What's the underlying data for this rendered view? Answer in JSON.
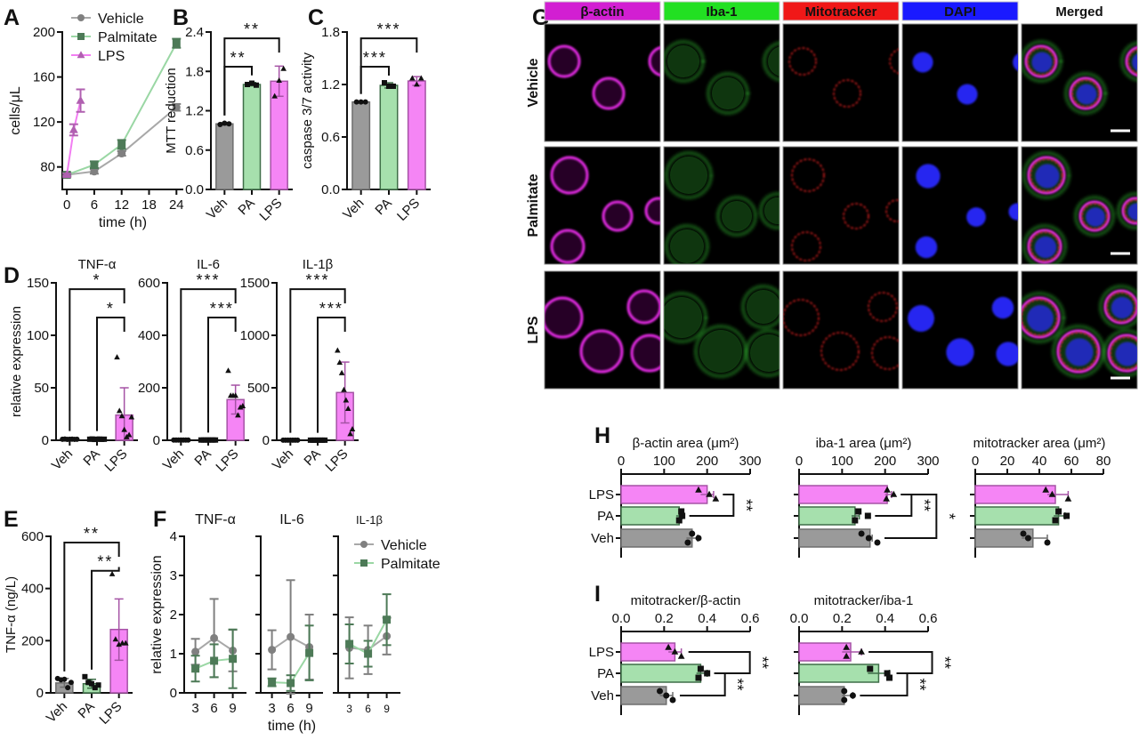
{
  "panel_letters": [
    "A",
    "B",
    "C",
    "D",
    "E",
    "F",
    "G",
    "H",
    "I"
  ],
  "groups": {
    "Veh": {
      "fill": "#9a9a9a",
      "stroke": "#6e6e6e",
      "marker": "circle"
    },
    "PA": {
      "fill": "#a6e0ad",
      "stroke": "#3f6e48",
      "marker": "square"
    },
    "LPS": {
      "fill": "#f585f5",
      "stroke": "#a553a5",
      "marker": "triangle"
    }
  },
  "series_colors": {
    "Vehicle": {
      "line": "#a8a8a8",
      "marker": "#808080",
      "marker_shape": "circle"
    },
    "Palmitate": {
      "line": "#9ad7a4",
      "marker": "#4d7a57",
      "marker_shape": "square"
    },
    "LPS": {
      "line": "#f27ef2",
      "marker": "#b060b0",
      "marker_shape": "triangle"
    }
  },
  "microscopy": {
    "columns": [
      {
        "label": "β-actin",
        "bg": "#d21fd2",
        "text": "#5a0a5a"
      },
      {
        "label": "Iba-1",
        "bg": "#22e022",
        "text": "#0b4a0b"
      },
      {
        "label": "Mitotracker",
        "bg": "#f01818",
        "text": "#5a0606"
      },
      {
        "label": "DAPI",
        "bg": "#1a1aff",
        "text": "#0a0a6a"
      },
      {
        "label": "Merged",
        "bg": "#ffffff",
        "text": "#111111"
      }
    ],
    "rows": [
      "Vehicle",
      "Palmitate",
      "LPS"
    ],
    "channel_colors": {
      "beta_actin": "#e52be5",
      "iba1": "#3ad83a",
      "mitotracker": "#e02222",
      "dapi": "#2626f0"
    },
    "scale_bar": true
  },
  "chart_data": [
    {
      "panel": "A",
      "type": "line",
      "xlabel": "time (h)",
      "ylabel": "cells/μL",
      "xlim": [
        -1,
        25.5
      ],
      "ylim": [
        60,
        200
      ],
      "xticks": [
        "0",
        "6",
        "12",
        "18",
        "24"
      ],
      "yticks": [
        "80",
        "120",
        "160",
        "200"
      ],
      "legend": "top-left",
      "grid": false,
      "series": [
        {
          "name": "Vehicle",
          "x": [
            0,
            6,
            12,
            24
          ],
          "y": [
            73,
            76,
            92,
            133
          ],
          "err": [
            2,
            2,
            2,
            3
          ]
        },
        {
          "name": "Palmitate",
          "x": [
            0,
            6,
            12,
            24
          ],
          "y": [
            73,
            82,
            100,
            190
          ],
          "err": [
            1,
            3,
            4,
            4
          ]
        },
        {
          "name": "LPS",
          "x": [
            0,
            1.5,
            3
          ],
          "y": [
            73,
            113,
            139
          ],
          "err": [
            1,
            5,
            10
          ]
        }
      ]
    },
    {
      "panel": "B",
      "type": "bar",
      "ylabel": "MTT reduction",
      "categories": [
        "Veh",
        "PA",
        "LPS"
      ],
      "values": [
        1.0,
        1.6,
        1.65
      ],
      "error": [
        [
          0.98,
          1.02
        ],
        [
          1.58,
          1.63
        ],
        [
          1.42,
          1.88
        ]
      ],
      "points": [
        [
          0.99,
          1.01,
          1.0
        ],
        [
          1.6,
          1.62,
          1.59
        ],
        [
          1.42,
          1.66,
          1.84
        ]
      ],
      "ylim": [
        0,
        2.4
      ],
      "yticks": [
        "0.0",
        "0.6",
        "1.2",
        "1.8",
        "2.4"
      ],
      "significance": [
        {
          "from": 0,
          "to": 1,
          "label": "**"
        },
        {
          "from": 0,
          "to": 2,
          "label": "**"
        }
      ]
    },
    {
      "panel": "C",
      "type": "bar",
      "ylabel": "caspase 3/7 activity",
      "categories": [
        "Veh",
        "PA",
        "LPS"
      ],
      "values": [
        1.0,
        1.19,
        1.24
      ],
      "error": [
        [
          0.99,
          1.01
        ],
        [
          1.16,
          1.22
        ],
        [
          1.19,
          1.29
        ]
      ],
      "points": [
        [
          1.0,
          1.0,
          1.0
        ],
        [
          1.22,
          1.18,
          1.18
        ],
        [
          1.27,
          1.2,
          1.27
        ]
      ],
      "ylim": [
        0,
        1.8
      ],
      "yticks": [
        "0.0",
        "0.6",
        "1.2",
        "1.8"
      ],
      "significance": [
        {
          "from": 0,
          "to": 1,
          "label": "***"
        },
        {
          "from": 0,
          "to": 2,
          "label": "***"
        }
      ]
    },
    {
      "panel": "D",
      "type": "bar",
      "title": "TNF-α",
      "ylabel": "relative expression",
      "categories": [
        "Veh",
        "PA",
        "LPS"
      ],
      "values": [
        1,
        1,
        24
      ],
      "error": [
        [
          0,
          2
        ],
        [
          0,
          2
        ],
        [
          0,
          50
        ]
      ],
      "points": [
        [
          1,
          1.2,
          0.8,
          1,
          1.1,
          0.9,
          1
        ],
        [
          1,
          1.2,
          0.8,
          1,
          1.1,
          0.9,
          1
        ],
        [
          79,
          28,
          23,
          10,
          3,
          5,
          22
        ]
      ],
      "ylim": [
        0,
        150
      ],
      "yticks": [
        "0",
        "50",
        "100",
        "150"
      ],
      "significance": [
        {
          "from": 1,
          "to": 2,
          "label": "*"
        },
        {
          "from": 0,
          "to": 2,
          "label": "*"
        }
      ]
    },
    {
      "panel": "D",
      "type": "bar",
      "title": "IL-6",
      "ylabel": "",
      "categories": [
        "Veh",
        "PA",
        "LPS"
      ],
      "values": [
        1,
        1,
        155
      ],
      "error": [
        [
          0,
          2
        ],
        [
          0,
          2
        ],
        [
          100,
          210
        ]
      ],
      "points": [
        [
          1,
          1,
          1,
          1,
          1,
          1,
          1
        ],
        [
          1,
          1,
          1,
          1,
          1,
          1,
          1
        ],
        [
          265,
          170,
          170,
          170,
          95,
          125,
          130
        ]
      ],
      "ylim": [
        0,
        600
      ],
      "yticks": [
        "0",
        "200",
        "400",
        "600"
      ],
      "significance": [
        {
          "from": 1,
          "to": 2,
          "label": "***"
        },
        {
          "from": 0,
          "to": 2,
          "label": "***"
        }
      ]
    },
    {
      "panel": "D",
      "type": "bar",
      "title": "IL-1β",
      "ylabel": "",
      "categories": [
        "Veh",
        "PA",
        "LPS"
      ],
      "values": [
        1,
        1,
        455
      ],
      "error": [
        [
          0,
          3
        ],
        [
          0,
          3
        ],
        [
          165,
          745
        ]
      ],
      "points": [
        [
          1,
          1,
          1,
          1,
          1,
          1,
          1
        ],
        [
          1,
          1,
          1,
          1,
          1,
          1,
          1
        ],
        [
          855,
          740,
          640,
          480,
          380,
          300,
          60,
          105
        ]
      ],
      "ylim": [
        0,
        1500
      ],
      "yticks": [
        "0",
        "500",
        "1000",
        "1500"
      ],
      "significance": [
        {
          "from": 1,
          "to": 2,
          "label": "***"
        },
        {
          "from": 0,
          "to": 2,
          "label": "***"
        }
      ]
    },
    {
      "panel": "E",
      "type": "bar",
      "ylabel": "TNF-α (ng/L)",
      "categories": [
        "Veh",
        "PA",
        "LPS"
      ],
      "values": [
        38,
        35,
        243
      ],
      "error": [
        [
          22,
          55
        ],
        [
          18,
          52
        ],
        [
          125,
          360
        ]
      ],
      "points": [
        [
          55,
          50,
          52,
          20,
          40
        ],
        [
          62,
          40,
          35,
          20,
          30
        ],
        [
          455,
          205,
          185,
          190,
          190
        ]
      ],
      "ylim": [
        0,
        600
      ],
      "yticks": [
        "0",
        "200",
        "400",
        "600"
      ],
      "significance": [
        {
          "from": 1,
          "to": 2,
          "label": "**"
        },
        {
          "from": 0,
          "to": 2,
          "label": "**"
        }
      ]
    },
    {
      "panel": "F",
      "type": "line",
      "title": "TNF-α",
      "ylabel": "relative expression",
      "xlabel": "",
      "xlim": [
        1.2,
        11.2
      ],
      "ylim": [
        0,
        4
      ],
      "xticks": [
        "3",
        "6",
        "9"
      ],
      "yticks": [
        "0",
        "1",
        "2",
        "3",
        "4"
      ],
      "series": [
        {
          "name": "Vehicle",
          "x": [
            3,
            6,
            9
          ],
          "y": [
            1.05,
            1.4,
            1.08
          ],
          "err": [
            0.33,
            1.0,
            0.53
          ]
        },
        {
          "name": "Palmitate",
          "x": [
            3,
            6,
            9
          ],
          "y": [
            0.62,
            0.82,
            0.87
          ],
          "err": [
            0.33,
            0.42,
            0.75
          ]
        }
      ]
    },
    {
      "panel": "F",
      "type": "line",
      "title": "IL-6",
      "ylabel": "",
      "xlabel": "time (h)",
      "xlim": [
        1.2,
        11.2
      ],
      "ylim": [
        0,
        4
      ],
      "xticks": [
        "3",
        "6",
        "9"
      ],
      "yticks": [],
      "series": [
        {
          "name": "Vehicle",
          "x": [
            3,
            6,
            9
          ],
          "y": [
            1.1,
            1.43,
            1.17
          ],
          "err": [
            0.5,
            1.45,
            0.83
          ]
        },
        {
          "name": "Palmitate",
          "x": [
            3,
            6,
            9
          ],
          "y": [
            0.27,
            0.25,
            1.02
          ],
          "err": [
            0.1,
            0.2,
            0.7
          ]
        }
      ]
    },
    {
      "panel": "F",
      "type": "line",
      "title": "IL-1β",
      "ylabel": "",
      "xlabel": "",
      "xlim": [
        1.2,
        11.2
      ],
      "ylim": [
        0,
        4
      ],
      "xticks": [
        "3",
        "6",
        "9"
      ],
      "yticks": [],
      "legend": "top-right",
      "series": [
        {
          "name": "Vehicle",
          "x": [
            3,
            6,
            9
          ],
          "y": [
            1.15,
            1.1,
            1.45
          ],
          "err": [
            0.78,
            0.62,
            0.47
          ]
        },
        {
          "name": "Palmitate",
          "x": [
            3,
            6,
            9
          ],
          "y": [
            1.25,
            1.0,
            1.87
          ],
          "err": [
            0.5,
            0.33,
            0.65
          ]
        }
      ]
    },
    {
      "panel": "H",
      "type": "bar",
      "orientation": "horizontal",
      "title": "β-actin area (μm²)",
      "categories": [
        "LPS",
        "PA",
        "Veh"
      ],
      "values": [
        200,
        135,
        165
      ],
      "error": [
        [
          185,
          215
        ],
        [
          128,
          142
        ],
        [
          152,
          178
        ]
      ],
      "points": [
        [
          180,
          205,
          220
        ],
        [
          140,
          142,
          135
        ],
        [
          165,
          180,
          155
        ]
      ],
      "xlim": [
        0,
        300
      ],
      "xticks": [
        "0",
        "100",
        "200",
        "300"
      ],
      "significance": [
        {
          "from": 0,
          "to": 1,
          "label": "**"
        }
      ]
    },
    {
      "panel": "H",
      "type": "bar",
      "orientation": "horizontal",
      "title": "iba-1 area (μm²)",
      "categories": [
        "LPS",
        "PA",
        "Veh"
      ],
      "values": [
        205,
        130,
        165
      ],
      "error": [
        [
          200,
          215
        ],
        [
          122,
          140
        ],
        [
          160,
          170
        ]
      ],
      "points": [
        [
          205,
          220,
          203
        ],
        [
          138,
          160,
          130
        ],
        [
          145,
          162,
          182
        ]
      ],
      "xlim": [
        0,
        300
      ],
      "xticks": [
        "0",
        "100",
        "200",
        "300"
      ],
      "significance": [
        {
          "from": 0,
          "to": 1,
          "label": "**"
        },
        {
          "from": 0,
          "to": 2,
          "label": "*"
        }
      ]
    },
    {
      "panel": "H",
      "type": "bar",
      "orientation": "horizontal",
      "title": "mitotracker area (μm²)",
      "categories": [
        "LPS",
        "PA",
        "Veh"
      ],
      "values": [
        50,
        52,
        36
      ],
      "error": [
        [
          45,
          58
        ],
        [
          49,
          56
        ],
        [
          29,
          45
        ]
      ],
      "points": [
        [
          44,
          48,
          58
        ],
        [
          52,
          57,
          50
        ],
        [
          30,
          33,
          45
        ]
      ],
      "xlim": [
        0,
        80
      ],
      "xticks": [
        "0",
        "20",
        "40",
        "60",
        "80"
      ],
      "significance": []
    },
    {
      "panel": "I",
      "type": "bar",
      "orientation": "horizontal",
      "title": "mitotracker/β-actin",
      "categories": [
        "LPS",
        "PA",
        "Veh"
      ],
      "values": [
        0.25,
        0.37,
        0.21
      ],
      "error": [
        [
          0.22,
          0.28
        ],
        [
          0.35,
          0.4
        ],
        [
          0.18,
          0.24
        ]
      ],
      "points": [
        [
          0.22,
          0.25,
          0.28
        ],
        [
          0.37,
          0.4,
          0.36
        ],
        [
          0.18,
          0.21,
          0.24
        ]
      ],
      "xlim": [
        0,
        0.6
      ],
      "xticks": [
        "0.0",
        "0.2",
        "0.4",
        "0.6"
      ],
      "significance": [
        {
          "from": 1,
          "to": 2,
          "label": "**"
        },
        {
          "from": 0,
          "to": 1,
          "label": "**"
        }
      ]
    },
    {
      "panel": "I",
      "type": "bar",
      "orientation": "horizontal",
      "title": "mitotracker/iba-1",
      "categories": [
        "LPS",
        "PA",
        "Veh"
      ],
      "values": [
        0.24,
        0.37,
        0.21
      ],
      "error": [
        [
          0.2,
          0.29
        ],
        [
          0.32,
          0.42
        ],
        [
          0.2,
          0.25
        ]
      ],
      "points": [
        [
          0.22,
          0.29,
          0.22
        ],
        [
          0.33,
          0.41,
          0.42
        ],
        [
          0.21,
          0.25,
          0.21
        ]
      ],
      "xlim": [
        0,
        0.6
      ],
      "xticks": [
        "0.0",
        "0.2",
        "0.4",
        "0.6"
      ],
      "significance": [
        {
          "from": 1,
          "to": 2,
          "label": "**"
        },
        {
          "from": 0,
          "to": 1,
          "label": "**"
        }
      ]
    }
  ]
}
